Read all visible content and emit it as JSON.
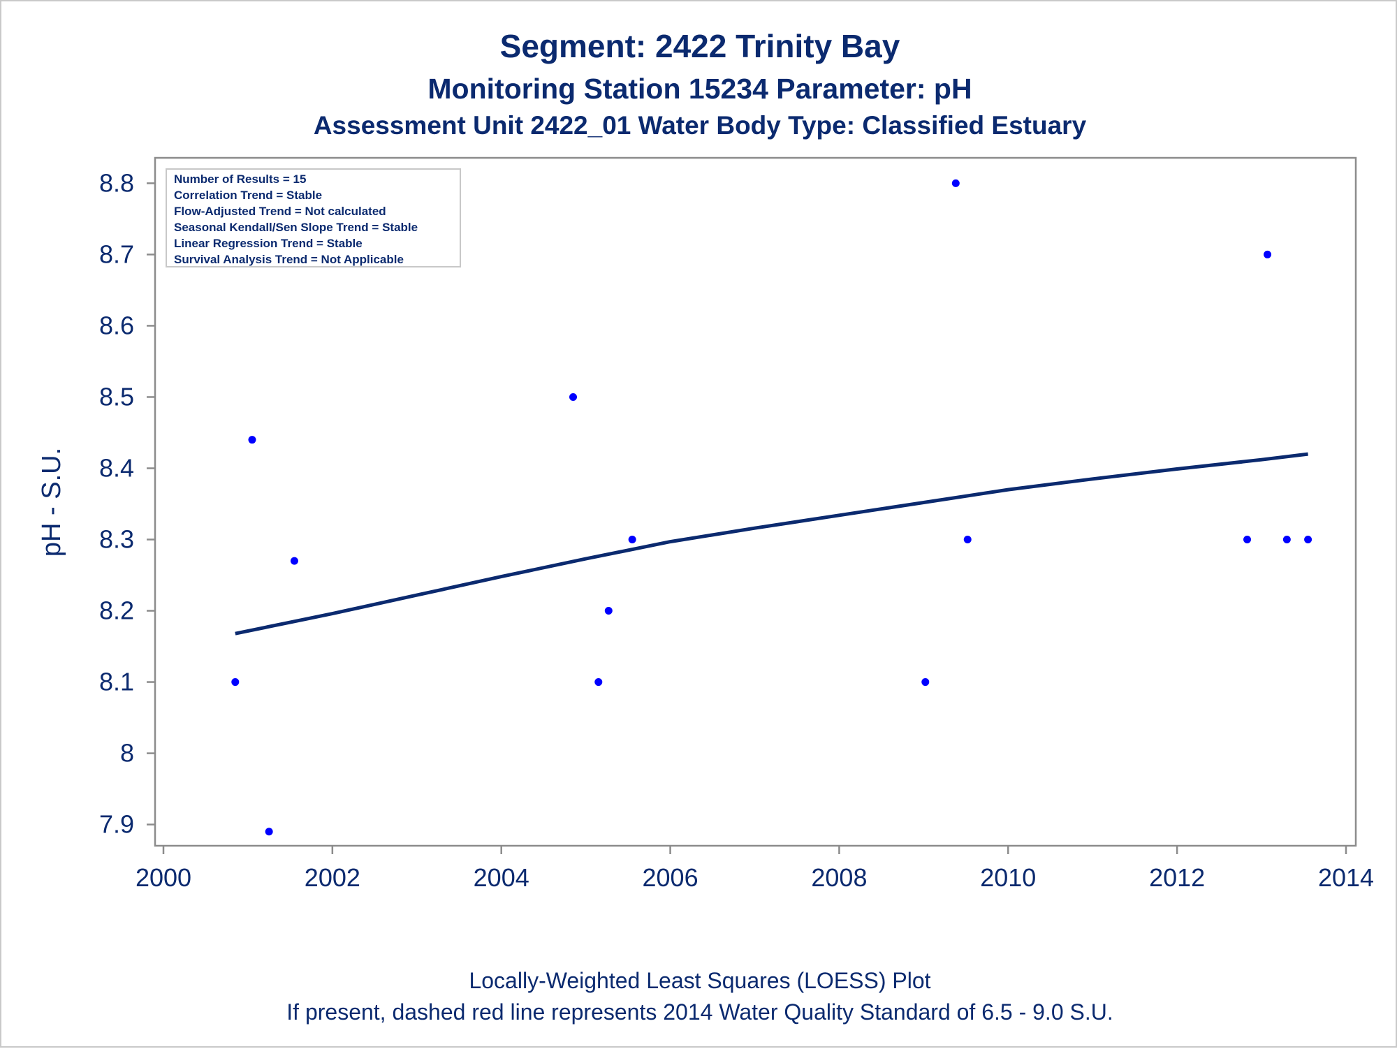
{
  "chart_data": {
    "type": "scatter",
    "title": "Segment: 2422  Trinity Bay",
    "subtitle": "Monitoring Station 15234 Parameter: pH",
    "subtitle2": "Assessment Unit 2422_01   Water Body Type: Classified Estuary",
    "xlabel": "",
    "ylabel": "pH - S.U.",
    "xlim": [
      2000,
      2014
    ],
    "ylim": [
      7.88,
      8.82
    ],
    "x_ticks": [
      2000,
      2002,
      2004,
      2006,
      2008,
      2010,
      2012,
      2014
    ],
    "y_ticks": [
      7.9,
      8,
      8.1,
      8.2,
      8.3,
      8.4,
      8.5,
      8.6,
      8.7,
      8.8
    ],
    "y_tick_labels": [
      "7.9",
      "8",
      "8.1",
      "8.2",
      "8.3",
      "8.4",
      "8.5",
      "8.6",
      "8.7",
      "8.8"
    ],
    "grid": false,
    "series": [
      {
        "type": "scatter",
        "color": "#0000ff",
        "points": [
          {
            "x": 2000.85,
            "y": 8.1
          },
          {
            "x": 2001.05,
            "y": 8.44
          },
          {
            "x": 2001.25,
            "y": 7.89
          },
          {
            "x": 2001.55,
            "y": 8.27
          },
          {
            "x": 2004.85,
            "y": 8.5
          },
          {
            "x": 2005.15,
            "y": 8.1
          },
          {
            "x": 2005.27,
            "y": 8.2
          },
          {
            "x": 2005.55,
            "y": 8.3
          },
          {
            "x": 2009.02,
            "y": 8.1
          },
          {
            "x": 2009.38,
            "y": 8.8
          },
          {
            "x": 2009.52,
            "y": 8.3
          },
          {
            "x": 2012.83,
            "y": 8.3
          },
          {
            "x": 2013.07,
            "y": 8.7
          },
          {
            "x": 2013.3,
            "y": 8.3
          },
          {
            "x": 2013.55,
            "y": 8.3
          }
        ]
      },
      {
        "type": "line",
        "color": "#0b2a6f",
        "points": [
          {
            "x": 2000.85,
            "y": 8.168
          },
          {
            "x": 2002.0,
            "y": 8.196
          },
          {
            "x": 2003.0,
            "y": 8.222
          },
          {
            "x": 2004.0,
            "y": 8.248
          },
          {
            "x": 2005.0,
            "y": 8.273
          },
          {
            "x": 2006.0,
            "y": 8.297
          },
          {
            "x": 2007.0,
            "y": 8.316
          },
          {
            "x": 2008.0,
            "y": 8.334
          },
          {
            "x": 2009.0,
            "y": 8.352
          },
          {
            "x": 2010.0,
            "y": 8.37
          },
          {
            "x": 2011.0,
            "y": 8.385
          },
          {
            "x": 2012.0,
            "y": 8.399
          },
          {
            "x": 2013.0,
            "y": 8.412
          },
          {
            "x": 2013.55,
            "y": 8.42
          }
        ]
      }
    ],
    "legend_placement": "top-left",
    "legend_lines": [
      "Number of Results = 15",
      "Correlation Trend = Stable",
      "Flow-Adjusted Trend = Not calculated",
      "Seasonal Kendall/Sen Slope Trend = Stable",
      "Linear Regression Trend = Stable",
      "Survival Analysis Trend = Not Applicable"
    ],
    "footnotes": [
      "Locally-Weighted Least Squares (LOESS) Plot",
      "If present, dashed red line represents 2014 Water Quality Standard of 6.5 - 9.0 S.U."
    ]
  }
}
